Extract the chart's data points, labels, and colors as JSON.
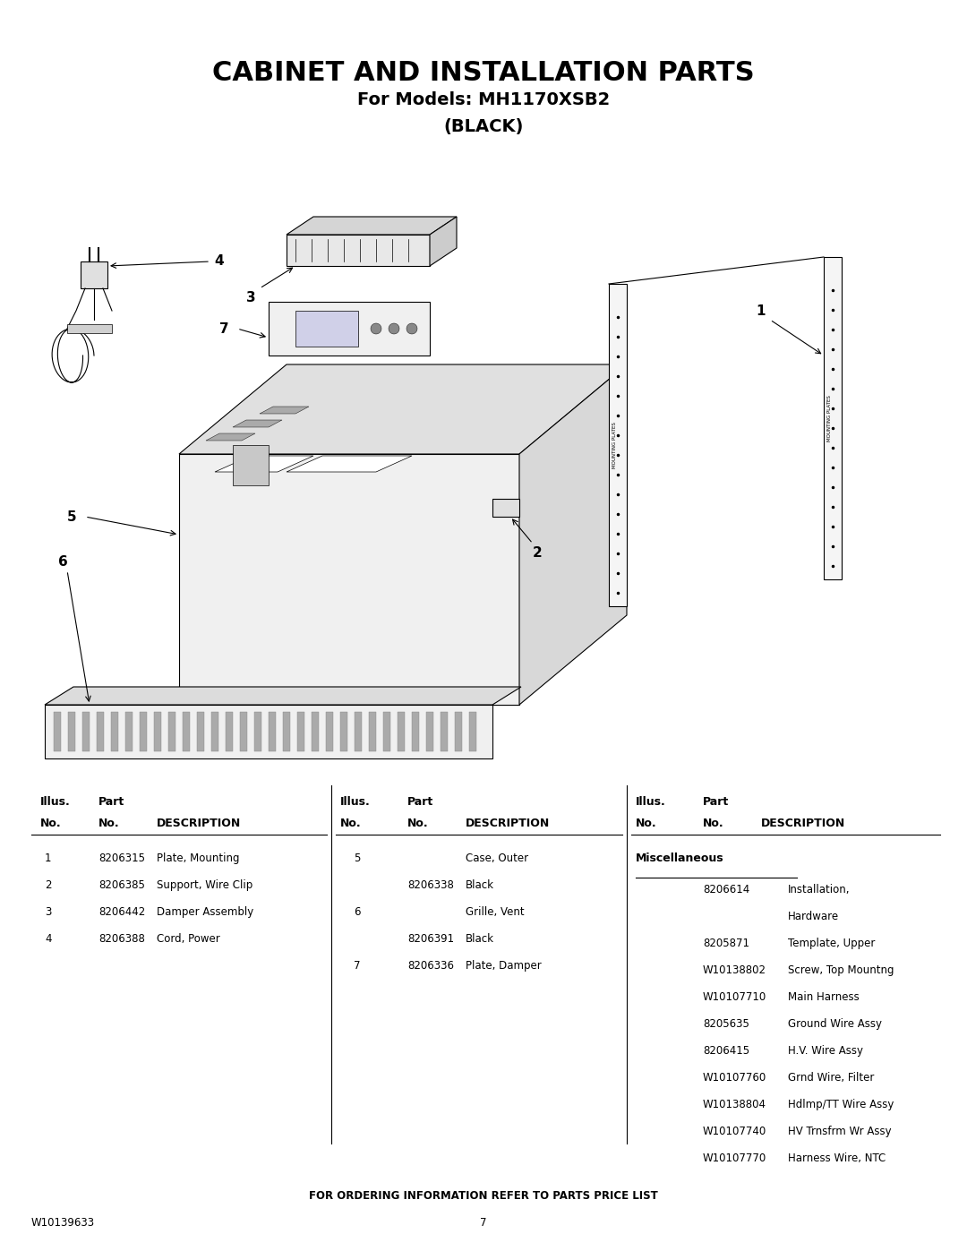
{
  "title": "CABINET AND INSTALLATION PARTS",
  "subtitle1": "For Models: MH1170XSB2",
  "subtitle2": "(BLACK)",
  "bg_color": "#ffffff",
  "title_fontsize": 22,
  "subtitle_fontsize": 14,
  "col1_rows": [
    [
      "1",
      "8206315",
      "Plate, Mounting"
    ],
    [
      "2",
      "8206385",
      "Support, Wire Clip"
    ],
    [
      "3",
      "8206442",
      "Damper Assembly"
    ],
    [
      "4",
      "8206388",
      "Cord, Power"
    ]
  ],
  "col2_rows": [
    [
      "5",
      "",
      "Case, Outer"
    ],
    [
      "",
      "8206338",
      "Black"
    ],
    [
      "6",
      "",
      "Grille, Vent"
    ],
    [
      "",
      "8206391",
      "Black"
    ],
    [
      "7",
      "8206336",
      "Plate, Damper"
    ]
  ],
  "col3_misc_title": "Miscellaneous",
  "col3_rows": [
    [
      "",
      "8206614",
      "Installation,"
    ],
    [
      "",
      "",
      "Hardware"
    ],
    [
      "",
      "8205871",
      "Template, Upper"
    ],
    [
      "",
      "W10138802",
      "Screw, Top Mountng"
    ],
    [
      "",
      "W10107710",
      "Main Harness"
    ],
    [
      "",
      "8205635",
      "Ground Wire Assy"
    ],
    [
      "",
      "8206415",
      "H.V. Wire Assy"
    ],
    [
      "",
      "W10107760",
      "Grnd Wire, Filter"
    ],
    [
      "",
      "W10138804",
      "Hdlmp/TT Wire Assy"
    ],
    [
      "",
      "W10107740",
      "HV Trnsfrm Wr Assy"
    ],
    [
      "",
      "W10107770",
      "Harness Wire, NTC"
    ]
  ],
  "footer_text": "FOR ORDERING INFORMATION REFER TO PARTS PRICE LIST",
  "doc_number": "W10139633",
  "page_number": "7"
}
